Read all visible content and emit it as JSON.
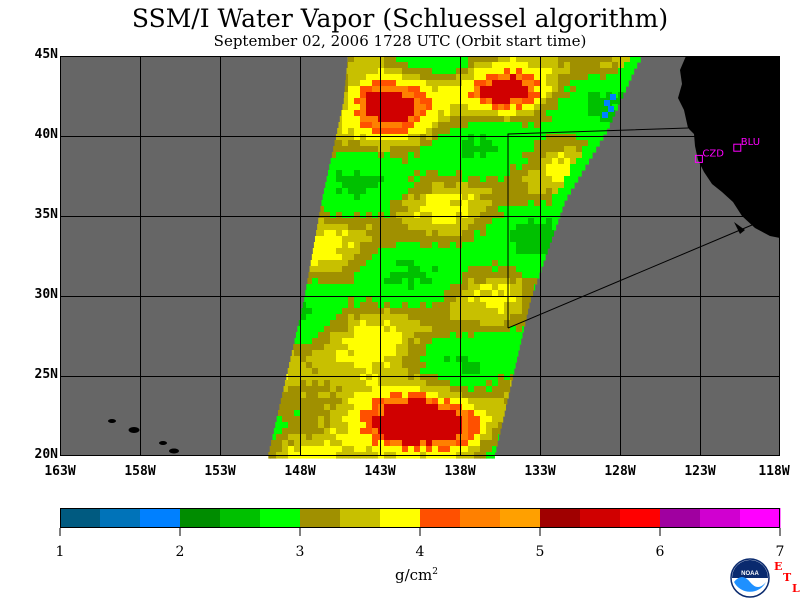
{
  "header": {
    "title": "SSM/I Water Vapor (Schluessel algorithm)",
    "subtitle": "September 02, 2006  1728 UTC  (Orbit start time)"
  },
  "map": {
    "lat_labels": [
      "45N",
      "40N",
      "35N",
      "30N",
      "25N",
      "20N"
    ],
    "lon_labels": [
      "163W",
      "158W",
      "153W",
      "148W",
      "143W",
      "138W",
      "133W",
      "128W",
      "123W",
      "118W"
    ],
    "lon_range": [
      -163,
      -118
    ],
    "lat_range": [
      20,
      45
    ],
    "stations": [
      {
        "id": "CZD",
        "lon": -123.1,
        "lat": 38.6
      },
      {
        "id": "BLU",
        "lon": -120.7,
        "lat": 39.3
      }
    ],
    "colors": {
      "ocean_no_data": "#666666",
      "land": "#000000",
      "grid": "#000000",
      "station": "#ff00ff"
    }
  },
  "colorbar": {
    "colors": [
      "#005a80",
      "#0073b9",
      "#0080ff",
      "#008c00",
      "#00c000",
      "#00ff00",
      "#a09000",
      "#c8c000",
      "#ffff00",
      "#ff5000",
      "#ff8000",
      "#ffa000",
      "#a00000",
      "#d00000",
      "#ff0000",
      "#a000a0",
      "#d000d0",
      "#ff00ff"
    ],
    "tick_labels": [
      "1",
      "2",
      "3",
      "4",
      "5",
      "6",
      "7"
    ],
    "units": "g/cm",
    "units_sup": "2"
  },
  "logo": {
    "text": "NOAA",
    "etl_letters": [
      "E",
      "T",
      "L"
    ]
  }
}
